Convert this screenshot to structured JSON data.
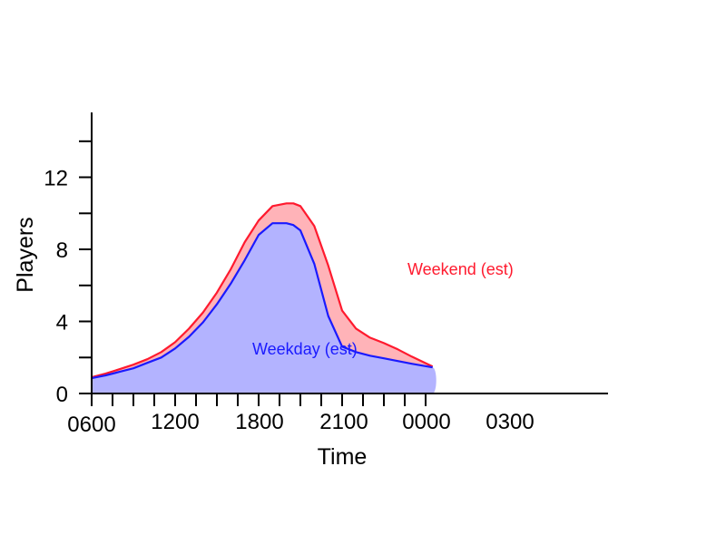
{
  "chart_data": {
    "type": "area",
    "xlabel": "Time",
    "ylabel": "Players",
    "ylim": [
      0,
      15
    ],
    "y_ticks": [
      "0",
      "4",
      "8",
      "12"
    ],
    "x_tick_labels": [
      "0600",
      "1200",
      "1800",
      "2100",
      "0000",
      "0300"
    ],
    "x_tick_label_hours": [
      0,
      6,
      12,
      15,
      18,
      21
    ],
    "x_range_hours": [
      0,
      24.6
    ],
    "x_unit": "hours after 0600",
    "x": [
      0,
      1,
      2,
      3,
      4,
      5,
      6,
      7,
      8,
      9,
      10,
      11,
      12,
      13,
      14,
      14.5,
      15,
      16,
      17,
      18,
      19,
      20,
      21,
      22,
      23,
      24.5
    ],
    "series": [
      {
        "name": "Weekend (est)",
        "color": "#ff1a2e",
        "fill": "#ffb3b8",
        "values": [
          0.9,
          1.1,
          1.35,
          1.6,
          1.9,
          2.3,
          2.85,
          3.6,
          4.5,
          5.6,
          6.9,
          8.4,
          9.6,
          10.4,
          10.55,
          10.55,
          10.4,
          9.3,
          7.1,
          4.6,
          3.6,
          3.1,
          2.8,
          2.45,
          2.05,
          1.5
        ]
      },
      {
        "name": "Weekday (est)",
        "color": "#1a1aff",
        "fill": "#b3b3ff",
        "values": [
          0.85,
          1.0,
          1.2,
          1.4,
          1.7,
          2.0,
          2.5,
          3.15,
          3.95,
          4.95,
          6.1,
          7.4,
          8.8,
          9.45,
          9.45,
          9.35,
          9.05,
          7.2,
          4.3,
          2.6,
          2.3,
          2.1,
          1.95,
          1.8,
          1.65,
          1.45
        ]
      }
    ]
  }
}
